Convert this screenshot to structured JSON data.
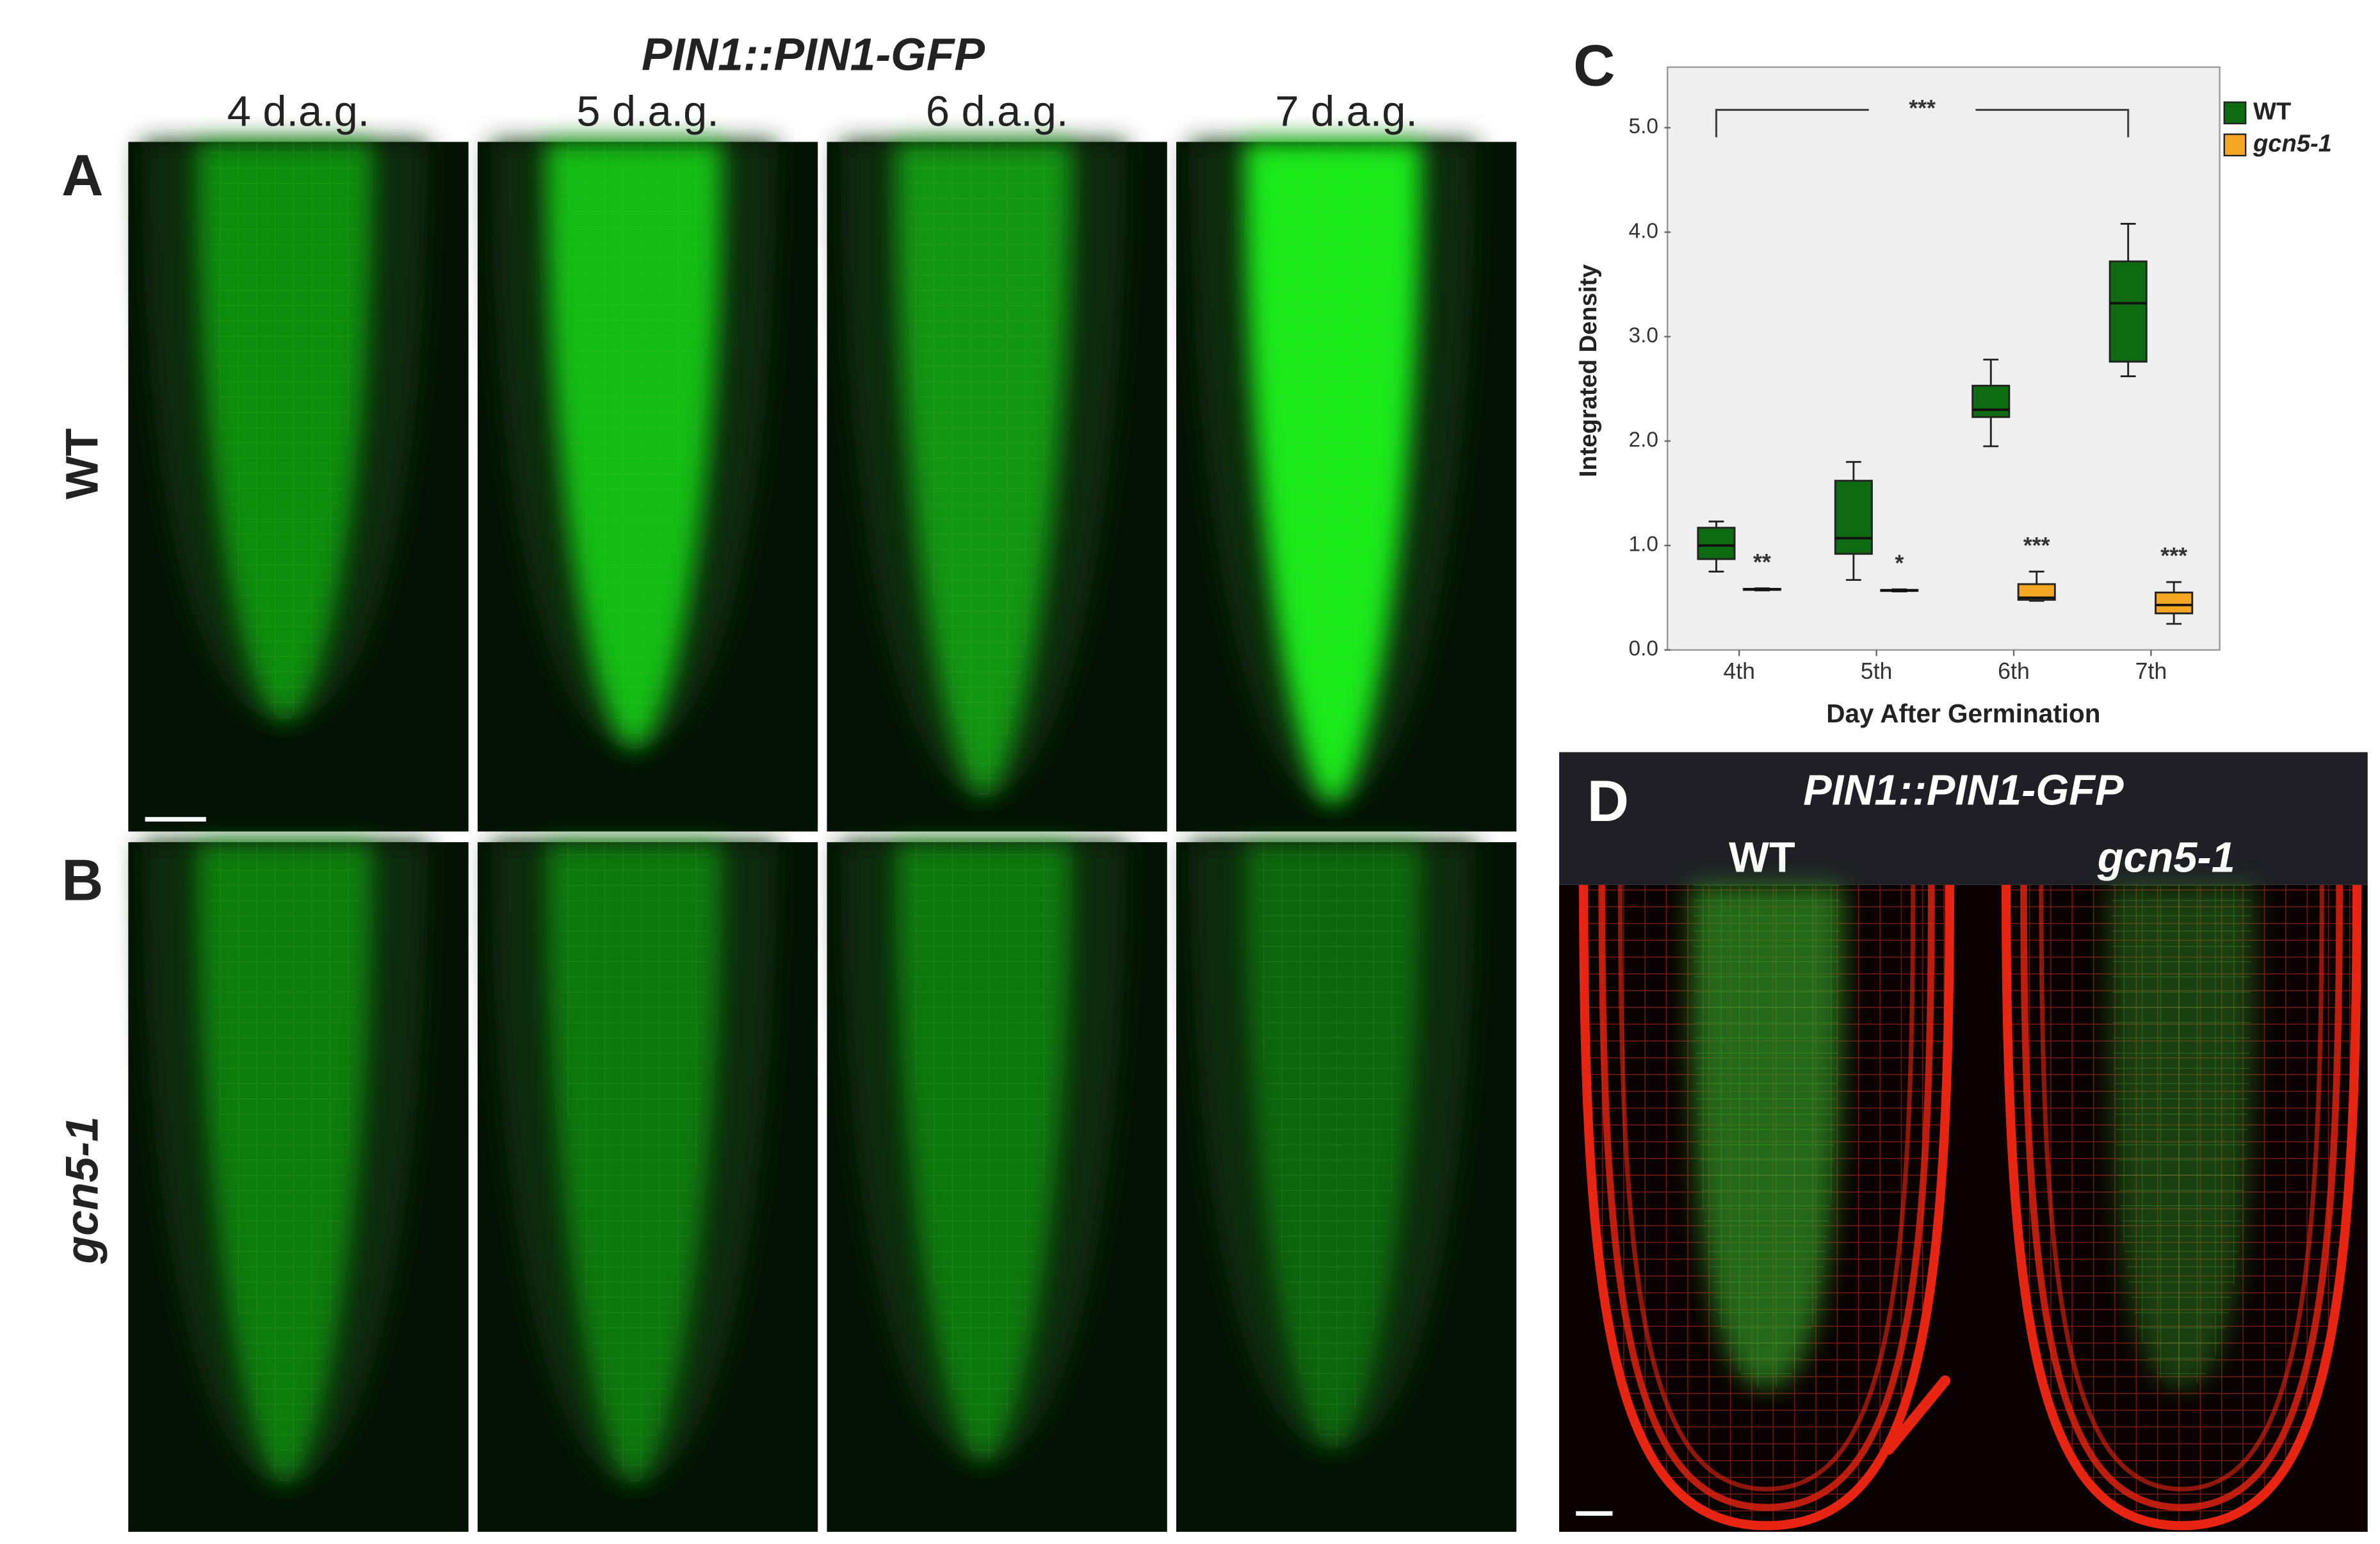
{
  "panels": [
    "A",
    "B",
    "C",
    "D"
  ],
  "panel_ab": {
    "title": "PIN1::PIN1-GFP",
    "columns": [
      "4 d.a.g.",
      "5 d.a.g.",
      "6 d.a.g.",
      "7 d.a.g."
    ],
    "rows": [
      "WT",
      "gcn5-1"
    ]
  },
  "panel_d": {
    "title": "PIN1::PIN1-GFP",
    "columns": [
      "WT",
      "gcn5-1"
    ]
  },
  "chart_data": {
    "type": "box",
    "x_label": "Day After Germination",
    "y_label": "Integrated Density",
    "categories": [
      "4th",
      "5th",
      "6th",
      "7th"
    ],
    "ylim": [
      0,
      5.58
    ],
    "yticks": [
      {
        "value": 0,
        "label": "0.0"
      },
      {
        "value": 1,
        "label": "1.0"
      },
      {
        "value": 2,
        "label": "2.0"
      },
      {
        "value": 3,
        "label": "3.0"
      },
      {
        "value": 4,
        "label": "4.0"
      },
      {
        "value": 5,
        "label": "5.0"
      }
    ],
    "grid": false,
    "legend": "outside-top-right",
    "series": [
      {
        "name": "WT",
        "color": "#0f6b12",
        "values": [
          {
            "min": 0.75,
            "q1": 0.87,
            "median": 1.0,
            "q3": 1.17,
            "max": 1.23
          },
          {
            "min": 0.67,
            "q1": 0.92,
            "median": 1.07,
            "q3": 1.62,
            "max": 1.8
          },
          {
            "min": 1.95,
            "q1": 2.23,
            "median": 2.3,
            "q3": 2.53,
            "max": 2.78
          },
          {
            "min": 2.62,
            "q1": 2.76,
            "median": 3.32,
            "q3": 3.72,
            "max": 4.08
          }
        ]
      },
      {
        "name": "gcn5-1",
        "color": "#f5a623",
        "values": [
          {
            "min": 0.57,
            "q1": 0.575,
            "median": 0.58,
            "q3": 0.585,
            "max": 0.59
          },
          {
            "min": 0.56,
            "q1": 0.565,
            "median": 0.57,
            "q3": 0.575,
            "max": 0.58
          },
          {
            "min": 0.47,
            "q1": 0.48,
            "median": 0.5,
            "q3": 0.63,
            "max": 0.75
          },
          {
            "min": 0.25,
            "q1": 0.35,
            "median": 0.43,
            "q3": 0.55,
            "max": 0.65
          }
        ]
      }
    ],
    "annotations": [
      "**",
      "*",
      "***",
      "***"
    ],
    "bracket_label": "***"
  }
}
